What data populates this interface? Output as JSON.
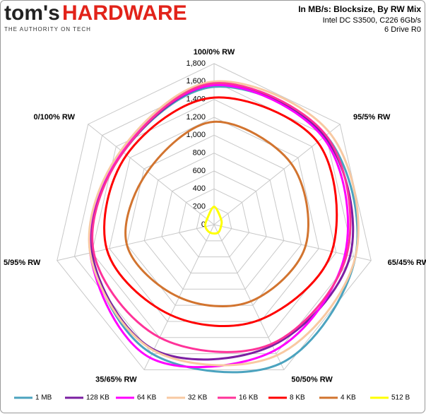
{
  "header": {
    "logo_left": "tom's",
    "logo_right": "HARDWARE",
    "tagline": "THE AUTHORITY ON TECH"
  },
  "chart_data": {
    "type": "radar",
    "title": "In MB/s: Blocksize, By RW Mix",
    "subtitle": [
      "Intel DC S3500, C226 6Gb/s",
      "6 Drive R0"
    ],
    "categories": [
      "100/0% RW",
      "95/5% RW",
      "65/45% RW",
      "50/50% RW",
      "35/65% RW",
      "5/95% RW",
      "0/100% RW"
    ],
    "ylim": [
      0,
      1800
    ],
    "yticks": [
      0,
      200,
      400,
      600,
      800,
      {
        "value": 1000,
        "label": "1,000"
      },
      {
        "value": 1200,
        "label": "1,200"
      },
      {
        "value": 1400,
        "label": "1,400"
      },
      {
        "value": 1600,
        "label": "1,600"
      },
      {
        "value": 1800,
        "label": "1,800"
      }
    ],
    "grid": true,
    "legend": "bottom",
    "series": [
      {
        "name": "1 MB",
        "color": "#4ba3bf",
        "values": [
          1540,
          1600,
          1620,
          1720,
          1600,
          1400,
          1300
        ]
      },
      {
        "name": "128 KB",
        "color": "#7b1fa2",
        "values": [
          1560,
          1580,
          1560,
          1500,
          1550,
          1400,
          1300
        ]
      },
      {
        "name": "64 KB",
        "color": "#ff00ff",
        "values": [
          1560,
          1560,
          1500,
          1560,
          1650,
          1420,
          1320
        ]
      },
      {
        "name": "32 KB",
        "color": "#f8c9a2",
        "values": [
          1600,
          1650,
          1620,
          1620,
          1560,
          1420,
          1330
        ]
      },
      {
        "name": "16 KB",
        "color": "#ff3399",
        "values": [
          1580,
          1600,
          1520,
          1480,
          1400,
          1380,
          1300
        ]
      },
      {
        "name": "8 KB",
        "color": "#ff0000",
        "values": [
          1420,
          1480,
          1350,
          1180,
          1120,
          1230,
          1250
        ]
      },
      {
        "name": "4 KB",
        "color": "#d2742f",
        "values": [
          1150,
          1100,
          1050,
          950,
          900,
          1000,
          950
        ]
      },
      {
        "name": "512 B",
        "color": "#ffff00",
        "values": [
          200,
          100,
          80,
          100,
          100,
          100,
          100
        ]
      }
    ]
  }
}
